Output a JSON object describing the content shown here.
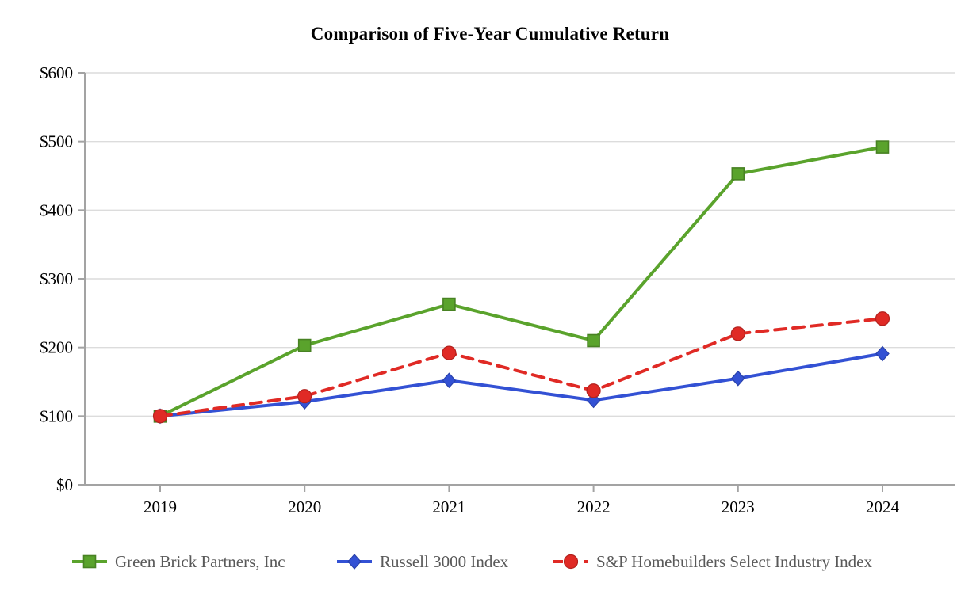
{
  "chart_data": {
    "type": "line",
    "title": "Comparison of Five-Year Cumulative Return",
    "categories": [
      "2019",
      "2020",
      "2021",
      "2022",
      "2023",
      "2024"
    ],
    "series": [
      {
        "name": "Green Brick Partners, Inc",
        "color": "#5aa32c",
        "marker": "square",
        "line_style": "solid",
        "values": [
          100,
          203,
          263,
          210,
          453,
          492
        ]
      },
      {
        "name": "Russell 3000 Index",
        "color": "#3351d4",
        "marker": "diamond",
        "line_style": "solid",
        "values": [
          100,
          121,
          152,
          123,
          155,
          191
        ]
      },
      {
        "name": "S&P Homebuilders Select Industry Index",
        "color": "#e02a25",
        "marker": "circle",
        "line_style": "dashed",
        "values": [
          100,
          129,
          192,
          137,
          220,
          242
        ]
      }
    ],
    "ylim": [
      0,
      600
    ],
    "ytick_step": 100,
    "ytick_labels": [
      "$0",
      "$100",
      "$200",
      "$300",
      "$400",
      "$500",
      "$600"
    ],
    "grid": "horizontal",
    "legend_position": "bottom",
    "axis_color": "#a3a3a3",
    "gridline_color": "#dcdcdc",
    "text_color": "#000000",
    "legend_text_color": "#595959"
  }
}
